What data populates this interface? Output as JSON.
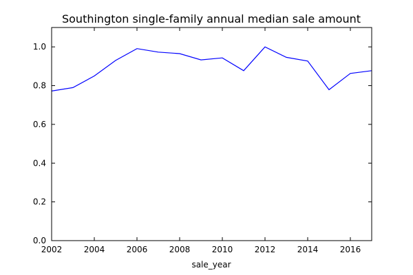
{
  "chart_data": {
    "type": "line",
    "title": "Southington single-family annual median sale amount",
    "xlabel": "sale_year",
    "ylabel": "",
    "xlim": [
      2002,
      2017
    ],
    "ylim": [
      0.0,
      1.1
    ],
    "xticks": [
      2002,
      2004,
      2006,
      2008,
      2010,
      2012,
      2014,
      2016
    ],
    "xtick_labels": [
      "2002",
      "2004",
      "2006",
      "2008",
      "2010",
      "2012",
      "2014",
      "2016"
    ],
    "yticks": [
      0.0,
      0.2,
      0.4,
      0.6,
      0.8,
      1.0
    ],
    "ytick_labels": [
      "0.0",
      "0.2",
      "0.4",
      "0.6",
      "0.8",
      "1.0"
    ],
    "grid": false,
    "legend": "none",
    "series": [
      {
        "color": "#0000ff",
        "x": [
          2002,
          2003,
          2004,
          2005,
          2006,
          2007,
          2008,
          2009,
          2010,
          2011,
          2012,
          2013,
          2014,
          2015,
          2016,
          2017
        ],
        "y": [
          0.772,
          0.79,
          0.85,
          0.93,
          0.991,
          0.973,
          0.965,
          0.933,
          0.943,
          0.877,
          1.0,
          0.946,
          0.927,
          0.779,
          0.863,
          0.877
        ]
      }
    ]
  }
}
